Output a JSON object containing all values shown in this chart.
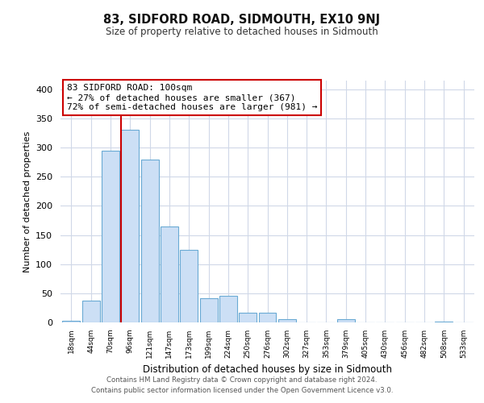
{
  "title": "83, SIDFORD ROAD, SIDMOUTH, EX10 9NJ",
  "subtitle": "Size of property relative to detached houses in Sidmouth",
  "xlabel": "Distribution of detached houses by size in Sidmouth",
  "ylabel": "Number of detached properties",
  "bar_labels": [
    "18sqm",
    "44sqm",
    "70sqm",
    "96sqm",
    "121sqm",
    "147sqm",
    "173sqm",
    "199sqm",
    "224sqm",
    "250sqm",
    "276sqm",
    "302sqm",
    "327sqm",
    "353sqm",
    "379sqm",
    "405sqm",
    "430sqm",
    "456sqm",
    "482sqm",
    "508sqm",
    "533sqm"
  ],
  "bar_values": [
    3,
    37,
    295,
    330,
    280,
    165,
    125,
    42,
    46,
    16,
    17,
    5,
    0,
    0,
    6,
    0,
    0,
    0,
    0,
    2,
    0
  ],
  "bar_color": "#ccdff5",
  "bar_edge_color": "#6aaad4",
  "vline_x_index": 3,
  "vline_color": "#cc0000",
  "annotation_text": "83 SIDFORD ROAD: 100sqm\n← 27% of detached houses are smaller (367)\n72% of semi-detached houses are larger (981) →",
  "annotation_box_color": "#ffffff",
  "annotation_box_edge": "#cc0000",
  "ylim": [
    0,
    415
  ],
  "yticks": [
    0,
    50,
    100,
    150,
    200,
    250,
    300,
    350,
    400
  ],
  "footer_line1": "Contains HM Land Registry data © Crown copyright and database right 2024.",
  "footer_line2": "Contains public sector information licensed under the Open Government Licence v3.0.",
  "bg_color": "#ffffff",
  "grid_color": "#d0d8e8"
}
